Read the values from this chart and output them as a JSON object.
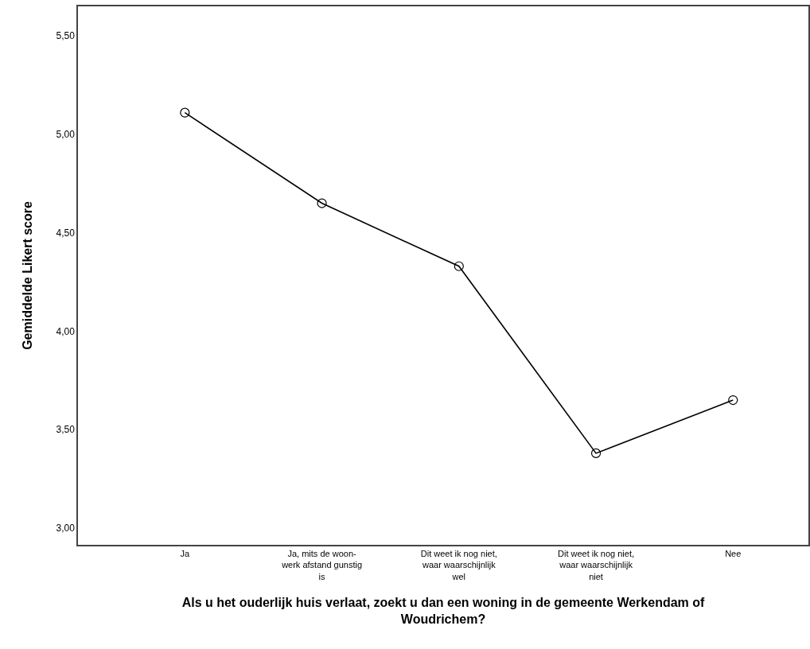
{
  "chart_data": {
    "type": "line",
    "xlabel": "Als u het ouderlijk huis verlaat, zoekt u dan een woning in de gemeente Werkendam of Woudrichem?",
    "ylabel": "Gemiddelde Likert score",
    "categories": [
      "Ja",
      "Ja, mits de woon-werk afstand gunstig is",
      "Dit weet ik nog niet, waar waarschijnlijk wel",
      "Dit weet ik nog niet, waar waarschijnlijk niet",
      "Nee"
    ],
    "series": [
      {
        "color": "#000000",
        "values": [
          5.11,
          4.65,
          4.33,
          3.38,
          3.65
        ]
      }
    ],
    "ylim": [
      2.915,
      5.65
    ],
    "yticks": [
      {
        "value": 3,
        "label": "3,00"
      },
      {
        "value": 3.5,
        "label": "3,50"
      },
      {
        "value": 4,
        "label": "4,00"
      },
      {
        "value": 4.5,
        "label": "4,50"
      },
      {
        "value": 5,
        "label": "5,00"
      },
      {
        "value": 5.5,
        "label": "5,50"
      }
    ],
    "grid": false,
    "marker": "circle",
    "line_style": "solid"
  }
}
